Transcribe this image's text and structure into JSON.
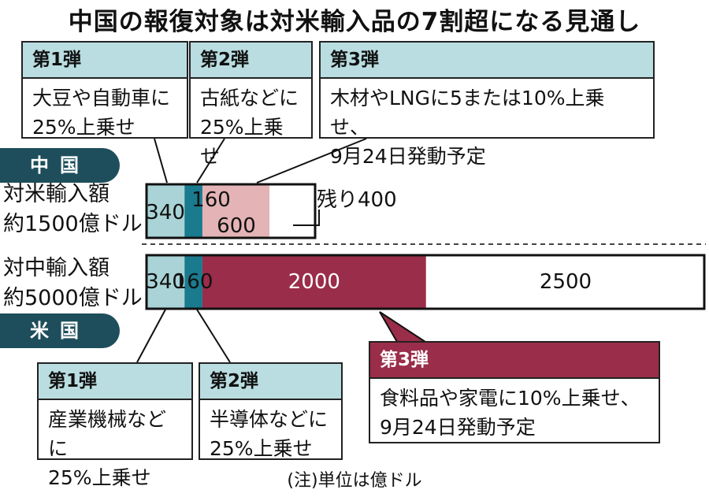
{
  "title": "中国の報復対象は対米輸入品の7割超になる見通し",
  "china": {
    "tag": "中国",
    "label": "対米輸入額\n約1500億ドル",
    "boxes": [
      {
        "head": "第1弾",
        "body": "大豆や自動車に\n25%上乗せ"
      },
      {
        "head": "第2弾",
        "body": "古紙などに\n25%上乗せ"
      },
      {
        "head": "第3弾",
        "body": "木材やLNGに5または10%上乗せ、\n9月24日発動予定"
      }
    ]
  },
  "usa": {
    "tag": "米国",
    "label": "対中輸入額\n約5000億ドル",
    "boxes": [
      {
        "head": "第1弾",
        "body": "産業機械などに\n25%上乗せ"
      },
      {
        "head": "第2弾",
        "body": "半導体などに\n25%上乗せ"
      },
      {
        "head": "第3弾",
        "body": "食料品や家電に10%上乗せ、\n9月24日発動予定"
      }
    ]
  },
  "note": "(注)単位は億ドル",
  "chart_data": [
    {
      "type": "bar",
      "orientation": "horizontal-stacked",
      "categories": [
        "第1弾",
        "第2弾",
        "第3弾",
        "残り"
      ],
      "values": [
        340,
        160,
        600,
        400
      ],
      "value_labels": [
        "340",
        "160",
        "600",
        "残り400"
      ],
      "total": 1500,
      "colors": [
        "#a9d3d6",
        "#1a7a8e",
        "#e3b3b5",
        "#ffffff"
      ]
    },
    {
      "type": "bar",
      "orientation": "horizontal-stacked",
      "categories": [
        "第1弾",
        "第2弾",
        "第3弾",
        "残り"
      ],
      "values": [
        340,
        160,
        2000,
        2500
      ],
      "value_labels": [
        "340",
        "160",
        "2000",
        "2500"
      ],
      "total": 5000,
      "colors": [
        "#a9d3d6",
        "#1a7a8e",
        "#9a2d49",
        "#ffffff"
      ]
    }
  ]
}
